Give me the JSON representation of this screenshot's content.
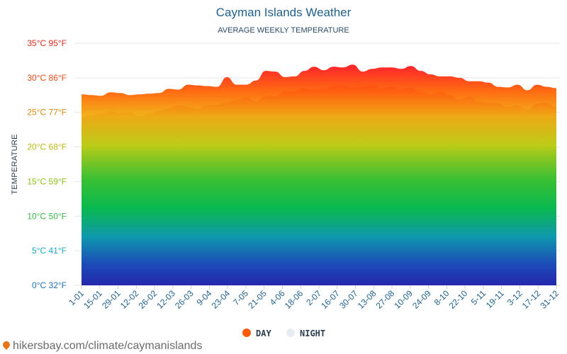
{
  "footer_text": "hikersbay.com/climate/caymanislands",
  "colors": {
    "day_legend": "#ff5a0a",
    "night_legend": "#e7ecf2",
    "title": "#1f5f8b"
  },
  "chart_data": {
    "type": "area",
    "title": "Cayman Islands Weather",
    "subtitle": "AVERAGE WEEKLY TEMPERATURE",
    "ylabel": "TEMPERATURE",
    "ylim": [
      0,
      35
    ],
    "y_ticks": [
      {
        "value": 0,
        "label": "0°C 32°F",
        "color": "#1e6fb0"
      },
      {
        "value": 5,
        "label": "5°C 41°F",
        "color": "#19a9c2"
      },
      {
        "value": 10,
        "label": "10°C 50°F",
        "color": "#3cb84a"
      },
      {
        "value": 15,
        "label": "15°C 59°F",
        "color": "#8fbf1c"
      },
      {
        "value": 20,
        "label": "20°C 68°F",
        "color": "#c0b816"
      },
      {
        "value": 25,
        "label": "25°C 77°F",
        "color": "#e08a10"
      },
      {
        "value": 30,
        "label": "30°C 86°F",
        "color": "#e8501a"
      },
      {
        "value": 35,
        "label": "35°C 95°F",
        "color": "#e02a1a"
      }
    ],
    "x_labels": [
      "1-01",
      "15-01",
      "29-01",
      "12-02",
      "26-02",
      "12-03",
      "26-03",
      "9-04",
      "23-04",
      "7-05",
      "21-05",
      "4-06",
      "18-06",
      "2-07",
      "16-07",
      "30-07",
      "13-08",
      "27-08",
      "10-09",
      "24-09",
      "8-10",
      "22-10",
      "5-11",
      "19-11",
      "3-12",
      "17-12",
      "31-12"
    ],
    "legend": [
      {
        "label": "DAY",
        "color": "#ff5a0a"
      },
      {
        "label": "NIGHT",
        "color": "#e7ecf2"
      }
    ],
    "series": [
      {
        "name": "DAY",
        "values": [
          27.6,
          27.5,
          27.4,
          27.9,
          27.8,
          27.5,
          27.6,
          27.7,
          27.8,
          28.4,
          28.3,
          29.0,
          28.9,
          28.8,
          28.7,
          30.1,
          29.0,
          29.0,
          29.6,
          31.0,
          30.9,
          30.1,
          30.2,
          31.0,
          31.6,
          31.1,
          31.6,
          31.5,
          31.9,
          30.9,
          31.3,
          31.5,
          31.5,
          31.3,
          31.7,
          31.0,
          30.5,
          30.2,
          30.2,
          30.0,
          29.5,
          29.5,
          29.3,
          28.7,
          28.6,
          29.0,
          28.2,
          29.0,
          28.7,
          28.5
        ]
      },
      {
        "name": "NIGHT",
        "values": [
          24.3,
          24.6,
          24.8,
          25.1,
          24.9,
          25.0,
          24.5,
          24.8,
          25.2,
          25.6,
          26.0,
          25.8,
          25.5,
          26.0,
          26.1,
          26.5,
          26.8,
          27.2,
          26.6,
          27.4,
          27.3,
          28.0,
          28.0,
          28.5,
          28.3,
          28.5,
          28.8,
          28.9,
          28.6,
          28.8,
          28.9,
          28.5,
          28.7,
          28.4,
          28.6,
          27.9,
          27.6,
          28.0,
          27.5,
          26.8,
          27.3,
          26.6,
          26.4,
          26.3,
          25.8,
          26.0,
          25.4,
          26.3,
          26.4,
          25.7
        ]
      }
    ],
    "grid": true,
    "legend_position": "bottom-center"
  }
}
